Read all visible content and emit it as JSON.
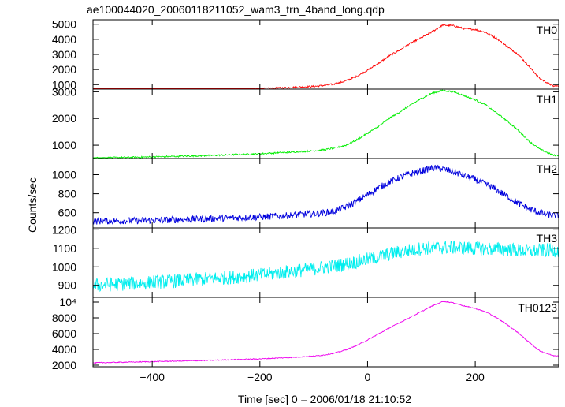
{
  "chart_data": {
    "type": "line",
    "title": "ae100044020_20060118211052_wam3_trn_4band_long.qdp",
    "xlabel": "Time [sec] 0 = 2006/01/18 21:10:52",
    "ylabel": "Counts/sec",
    "xlim": [
      -510,
      355
    ],
    "x_ticks": [
      -400,
      -200,
      0,
      200
    ],
    "x_tick_labels": [
      "−400",
      "−200",
      "0",
      "200"
    ],
    "panels": [
      {
        "name": "TH0",
        "color": "#ff0000",
        "ylim": [
          700,
          5300
        ],
        "y_ticks": [
          1000,
          2000,
          3000,
          4000,
          5000
        ],
        "y_tick_labels": [
          "1000",
          "2000",
          "3000",
          "4000",
          "5000"
        ],
        "noise": 55,
        "x": [
          -510,
          -400,
          -300,
          -200,
          -150,
          -100,
          -80,
          -60,
          -40,
          -20,
          0,
          20,
          40,
          60,
          80,
          100,
          120,
          140,
          160,
          180,
          200,
          220,
          240,
          260,
          280,
          300,
          320,
          345
        ],
        "y": [
          400,
          500,
          600,
          720,
          800,
          880,
          950,
          1050,
          1250,
          1550,
          1950,
          2400,
          2900,
          3300,
          3750,
          4100,
          4500,
          4950,
          4900,
          4700,
          4650,
          4450,
          4050,
          3500,
          3000,
          2200,
          1400,
          900
        ]
      },
      {
        "name": "TH1",
        "color": "#00ee00",
        "ylim": [
          500,
          3100
        ],
        "y_ticks": [
          1000,
          2000,
          3000
        ],
        "y_tick_labels": [
          "1000",
          "2000",
          "3000"
        ],
        "noise": 30,
        "x": [
          -510,
          -400,
          -300,
          -200,
          -150,
          -100,
          -80,
          -60,
          -40,
          -20,
          0,
          20,
          40,
          60,
          80,
          100,
          120,
          140,
          160,
          180,
          200,
          220,
          240,
          260,
          280,
          300,
          320,
          345
        ],
        "y": [
          520,
          560,
          610,
          680,
          730,
          790,
          830,
          900,
          1000,
          1200,
          1450,
          1700,
          2000,
          2250,
          2500,
          2750,
          2950,
          3050,
          3000,
          2850,
          2700,
          2500,
          2200,
          1900,
          1550,
          1150,
          850,
          620
        ]
      },
      {
        "name": "TH2",
        "color": "#0000dd",
        "ylim": [
          440,
          1170
        ],
        "y_ticks": [
          600,
          800,
          1000
        ],
        "y_tick_labels": [
          "600",
          "800",
          "1000"
        ],
        "noise": 35,
        "x": [
          -510,
          -400,
          -300,
          -200,
          -150,
          -100,
          -80,
          -60,
          -40,
          -20,
          0,
          20,
          40,
          60,
          80,
          100,
          120,
          140,
          160,
          180,
          200,
          220,
          240,
          260,
          280,
          300,
          320,
          345
        ],
        "y": [
          510,
          520,
          535,
          555,
          570,
          590,
          600,
          620,
          660,
          720,
          790,
          860,
          920,
          970,
          1010,
          1040,
          1070,
          1060,
          1030,
          990,
          950,
          900,
          840,
          770,
          700,
          640,
          600,
          570
        ]
      },
      {
        "name": "TH3",
        "color": "#00eeee",
        "ylim": [
          835,
          1210
        ],
        "y_ticks": [
          900,
          1000,
          1100,
          1200
        ],
        "y_tick_labels": [
          "900",
          "1000",
          "1100",
          "1200"
        ],
        "noise": 38,
        "x": [
          -510,
          -400,
          -300,
          -200,
          -100,
          -50,
          0,
          50,
          100,
          150,
          200,
          250,
          300,
          345
        ],
        "y": [
          900,
          915,
          935,
          955,
          990,
          1010,
          1040,
          1075,
          1100,
          1105,
          1100,
          1095,
          1085,
          1090
        ]
      },
      {
        "name": "TH0123",
        "color": "#ee00ee",
        "ylim": [
          1800,
          10600
        ],
        "y_ticks": [
          2000,
          4000,
          6000,
          8000,
          10000
        ],
        "y_tick_labels": [
          "2000",
          "4000",
          "6000",
          "8000",
          "10⁴"
        ],
        "noise": 55,
        "x": [
          -510,
          -400,
          -300,
          -200,
          -150,
          -100,
          -80,
          -60,
          -40,
          -20,
          0,
          20,
          40,
          60,
          80,
          100,
          120,
          140,
          160,
          180,
          200,
          220,
          240,
          260,
          280,
          300,
          320,
          345
        ],
        "y": [
          2300,
          2450,
          2600,
          2800,
          2950,
          3150,
          3300,
          3550,
          3950,
          4500,
          5200,
          5950,
          6700,
          7400,
          8100,
          8800,
          9500,
          10100,
          9900,
          9500,
          9200,
          8750,
          8000,
          7100,
          6100,
          4900,
          3800,
          3200
        ]
      }
    ]
  }
}
